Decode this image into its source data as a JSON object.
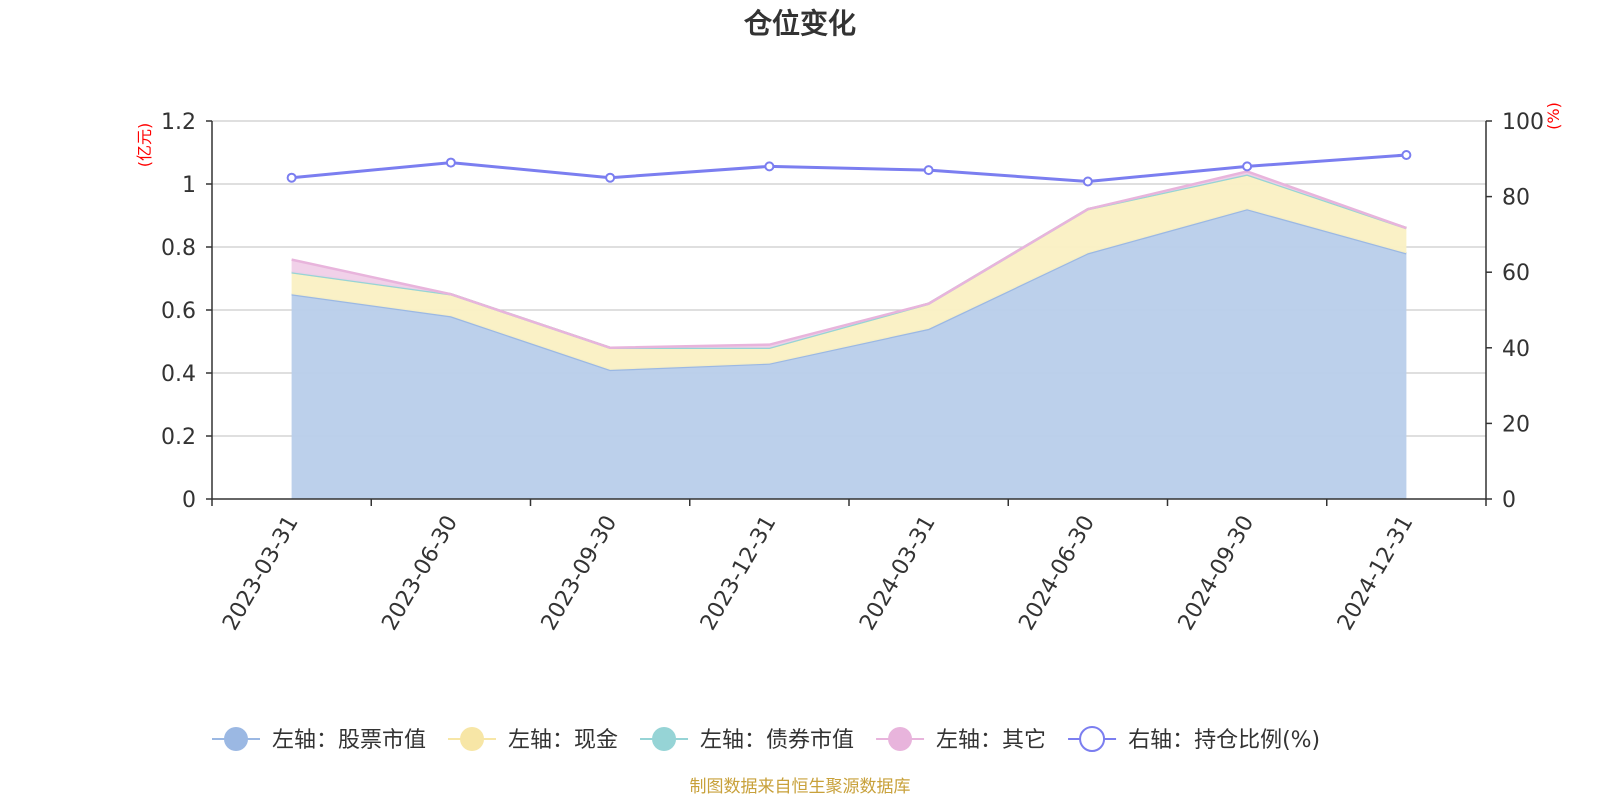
{
  "chart_data": {
    "type": "area",
    "title": "仓位变化",
    "categories": [
      "2023-03-31",
      "2023-06-30",
      "2023-09-30",
      "2023-12-31",
      "2024-03-31",
      "2024-06-30",
      "2024-09-30",
      "2024-12-31"
    ],
    "left_axis": {
      "unit": "(亿元)",
      "ylim": [
        0,
        1.2
      ],
      "ticks": [
        "0",
        "0.2",
        "0.4",
        "0.6",
        "0.8",
        "1",
        "1.2"
      ]
    },
    "right_axis": {
      "unit": "(%)",
      "ylim": [
        0,
        100
      ],
      "ticks": [
        "0",
        "20",
        "40",
        "60",
        "80",
        "100"
      ]
    },
    "series": [
      {
        "name": "左轴：股票市值",
        "axis": "left",
        "type": "area",
        "stacked": true,
        "color": "#9bb8e3",
        "fill": "#b8cdea",
        "values": [
          0.65,
          0.58,
          0.41,
          0.43,
          0.54,
          0.78,
          0.92,
          0.78
        ]
      },
      {
        "name": "左轴：现金",
        "axis": "left",
        "type": "area",
        "stacked": true,
        "color": "#f7e6a6",
        "fill": "#faf0c3",
        "values": [
          0.07,
          0.07,
          0.07,
          0.05,
          0.08,
          0.14,
          0.11,
          0.08
        ]
      },
      {
        "name": "左轴：债券市值",
        "axis": "left",
        "type": "area",
        "stacked": true,
        "color": "#96d4d6",
        "fill": "#c3e7e8",
        "values": [
          0,
          0,
          0,
          0,
          0,
          0,
          0,
          0
        ]
      },
      {
        "name": "左轴：其它",
        "axis": "left",
        "type": "area",
        "stacked": true,
        "color": "#e8b4dc",
        "fill": "#f0cfe8",
        "values": [
          0.04,
          0.0,
          0.0,
          0.01,
          0.0,
          0.0,
          0.01,
          0.0
        ]
      },
      {
        "name": "右轴：持仓比例(%)",
        "axis": "right",
        "type": "line",
        "color": "#7b7ef0",
        "values": [
          85,
          89,
          85,
          88,
          87,
          84,
          88,
          91
        ]
      }
    ],
    "grid": true,
    "legend_position": "bottom",
    "source_note": "制图数据来自恒生聚源数据库"
  }
}
